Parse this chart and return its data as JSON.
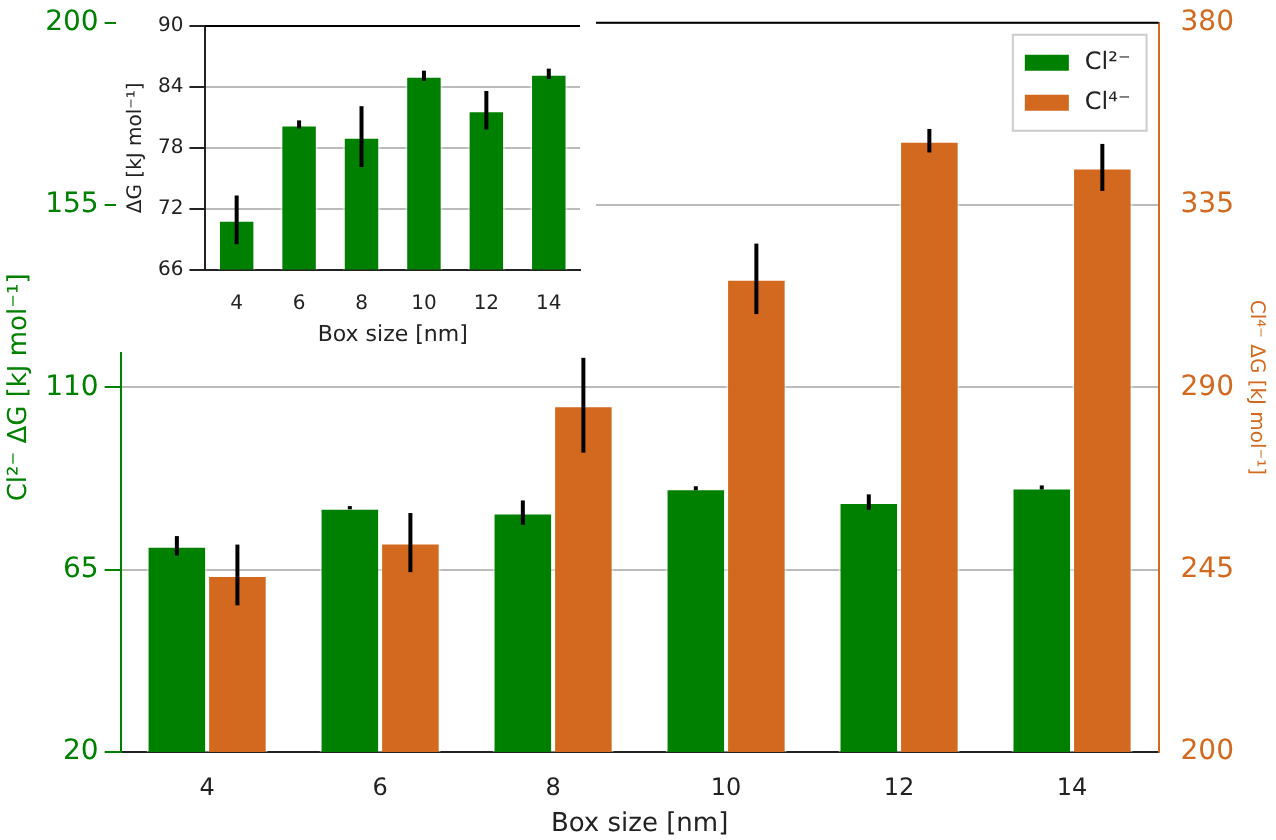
{
  "chart_data": [
    {
      "type": "bar",
      "categories": [
        "4",
        "6",
        "8",
        "10",
        "12",
        "14"
      ],
      "xlabel": "Box size [nm]",
      "ylabel": "Cl²⁻ ΔG [kJ mol⁻¹]",
      "y2label": "Cl⁴⁻ ΔG [kJ mol⁻¹]",
      "series": [
        {
          "name": "Cl²⁻",
          "color": "#008000",
          "axis": "y",
          "values": [
            70.9,
            80.3,
            79.1,
            85.1,
            81.7,
            85.3
          ],
          "errors": [
            2.4,
            0.4,
            3.0,
            0.5,
            1.9,
            0.5
          ]
        },
        {
          "name": "Cl⁴⁻",
          "color": "#d2691e",
          "axis": "y2",
          "values": [
            243.7,
            251.7,
            285.6,
            316.8,
            350.9,
            344.3
          ],
          "errors": [
            7.5,
            7.3,
            11.7,
            8.7,
            2.9,
            5.8
          ]
        }
      ],
      "ylim": [
        20,
        200
      ],
      "yticks": [
        20,
        65,
        110,
        155,
        200
      ],
      "y2lim": [
        200,
        380
      ],
      "y2ticks": [
        200,
        245,
        290,
        335,
        380
      ],
      "grid": "y",
      "legend": "top right"
    },
    {
      "type": "bar",
      "categories": [
        "4",
        "6",
        "8",
        "10",
        "12",
        "14"
      ],
      "xlabel": "Box size [nm]",
      "ylabel": "ΔG [kJ mol⁻¹]",
      "series": [
        {
          "color": "#008000",
          "values": [
            70.9,
            80.3,
            79.1,
            85.1,
            81.7,
            85.3
          ],
          "errors": [
            2.4,
            0.4,
            3.0,
            0.5,
            1.9,
            0.5
          ]
        }
      ],
      "ylim": [
        66,
        90
      ],
      "yticks": [
        66,
        72,
        78,
        84,
        90
      ],
      "grid": "y"
    }
  ]
}
